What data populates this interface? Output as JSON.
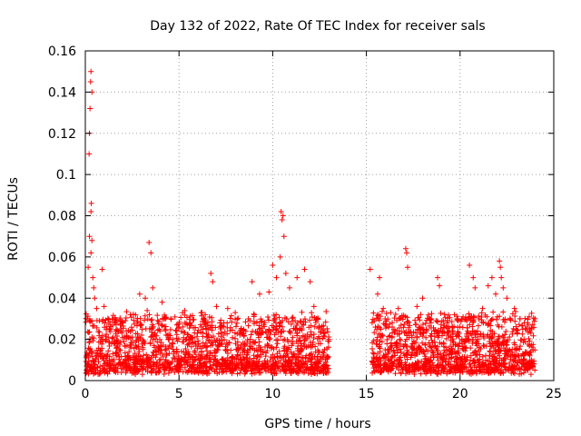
{
  "chart_data": {
    "type": "scatter",
    "title": "Day 132 of 2022, Rate Of TEC Index for receiver sals",
    "xlabel": "GPS time / hours",
    "ylabel": "ROTI / TECUs",
    "xlim": [
      0,
      25
    ],
    "ylim": [
      0,
      0.16
    ],
    "xticks": [
      0,
      5,
      10,
      15,
      20,
      25
    ],
    "xtick_labels": [
      "0",
      "5",
      "10",
      "15",
      "20",
      "25"
    ],
    "yticks": [
      0,
      0.02,
      0.04,
      0.06,
      0.08,
      0.1,
      0.12,
      0.14,
      0.16
    ],
    "ytick_labels": [
      "0",
      "0.02",
      "0.04",
      "0.06",
      "0.08",
      "0.1",
      "0.12",
      "0.14",
      "0.16"
    ],
    "grid": true,
    "marker": "+",
    "color": "#ff0000",
    "data_gap_hours": [
      13.0,
      15.3
    ],
    "series": [
      {
        "name": "ROTI",
        "x": [
          0.1,
          0.15,
          0.2,
          0.22,
          0.25,
          0.28,
          0.3,
          0.35,
          0.3,
          0.32,
          0.22,
          0.35,
          0.4,
          0.45,
          0.5,
          0.3,
          0.6,
          0.9,
          1.0,
          1.3,
          2.0,
          2.4,
          2.9,
          3.2,
          3.4,
          3.5,
          3.6,
          3.3,
          4.1,
          4.2,
          5.3,
          5.6,
          6.4,
          6.7,
          6.8,
          7.0,
          7.6,
          8.0,
          8.7,
          8.9,
          9.3,
          9.8,
          10.0,
          10.2,
          10.45,
          10.5,
          10.55,
          10.6,
          10.4,
          10.7,
          10.9,
          11.3,
          11.7,
          12.0,
          12.2,
          12.4,
          12.7,
          13.0,
          15.2,
          15.6,
          15.7,
          15.9,
          16.0,
          16.3,
          16.7,
          17.1,
          17.15,
          17.2,
          17.7,
          18.0,
          18.4,
          18.8,
          18.9,
          19.3,
          19.7,
          20.1,
          20.5,
          20.7,
          20.8,
          21.0,
          21.2,
          21.5,
          21.7,
          21.9,
          22.1,
          22.15,
          22.2,
          22.3,
          22.5,
          22.9,
          23.2,
          23.5,
          23.6,
          23.8,
          24.0
        ],
        "y": [
          0.03,
          0.055,
          0.11,
          0.12,
          0.132,
          0.145,
          0.15,
          0.14,
          0.082,
          0.086,
          0.07,
          0.068,
          0.05,
          0.045,
          0.04,
          0.062,
          0.035,
          0.054,
          0.036,
          0.025,
          0.028,
          0.032,
          0.042,
          0.04,
          0.067,
          0.062,
          0.045,
          0.034,
          0.038,
          0.03,
          0.034,
          0.028,
          0.032,
          0.052,
          0.048,
          0.036,
          0.035,
          0.033,
          0.03,
          0.048,
          0.042,
          0.043,
          0.056,
          0.05,
          0.082,
          0.078,
          0.08,
          0.07,
          0.06,
          0.052,
          0.045,
          0.05,
          0.054,
          0.048,
          0.036,
          0.03,
          0.025,
          0.02,
          0.054,
          0.042,
          0.05,
          0.035,
          0.03,
          0.033,
          0.035,
          0.064,
          0.062,
          0.055,
          0.036,
          0.04,
          0.03,
          0.05,
          0.046,
          0.028,
          0.032,
          0.03,
          0.056,
          0.05,
          0.045,
          0.03,
          0.035,
          0.046,
          0.05,
          0.042,
          0.058,
          0.055,
          0.05,
          0.045,
          0.04,
          0.035,
          0.03,
          0.025,
          0.028,
          0.025,
          0.03
        ]
      }
    ]
  }
}
